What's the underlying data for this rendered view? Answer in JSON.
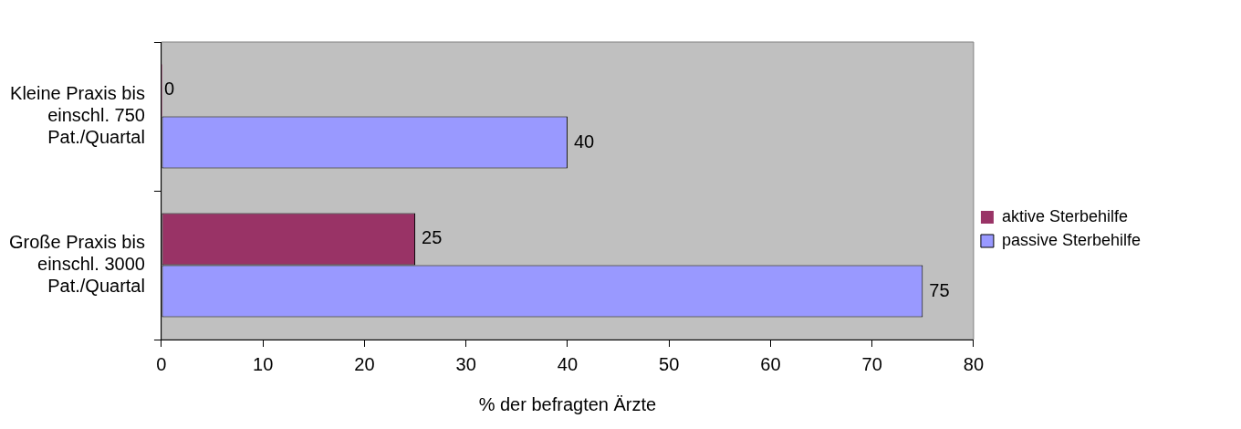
{
  "chart_data": {
    "type": "bar",
    "orientation": "horizontal",
    "xlabel": "% der befragten Ärzte",
    "categories": [
      "Kleine Praxis bis einschl. 750 Pat./Quartal",
      "Große Praxis bis einschl. 3000 Pat./Quartal"
    ],
    "series": [
      {
        "name": "aktive Sterbehilfe",
        "color": "#993366",
        "values": [
          0,
          25
        ]
      },
      {
        "name": "passive Sterbehilfe",
        "color": "#9999ff",
        "values": [
          40,
          75
        ]
      }
    ],
    "xlim": [
      0,
      80
    ],
    "xticks": [
      0,
      10,
      20,
      30,
      40,
      50,
      60,
      70,
      80
    ],
    "grid": false,
    "legend": "right",
    "data_labels": true
  }
}
